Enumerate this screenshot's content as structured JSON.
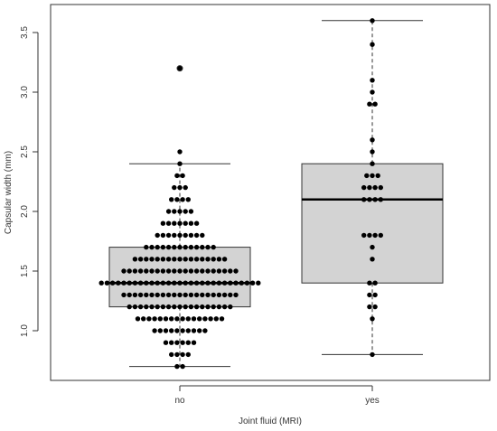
{
  "chart_data": {
    "type": "boxplot",
    "xlabel": "Joint fluid (MRI)",
    "ylabel": "Capsular width (mm)",
    "categories": [
      "no",
      "yes"
    ],
    "ylim": [
      0.6,
      3.65
    ],
    "yticks": [
      1.0,
      1.5,
      2.0,
      2.5,
      3.0,
      3.5
    ],
    "ytick_labels": [
      "1.0",
      "1.5",
      "2.0",
      "2.5",
      "3.0",
      "3.5"
    ],
    "grid": false,
    "legend": "none",
    "box_fill": "#d3d3d3",
    "point_color": "#000000",
    "boxes": [
      {
        "name": "no",
        "whisker_low": 0.7,
        "q1": 1.2,
        "median": 1.4,
        "q3": 1.7,
        "whisker_high": 2.4,
        "outliers": [
          3.2
        ]
      },
      {
        "name": "yes",
        "whisker_low": 0.8,
        "q1": 1.4,
        "median": 2.1,
        "q3": 2.4,
        "whisker_high": 3.6,
        "outliers": []
      }
    ],
    "points": [
      {
        "category": "no",
        "bins": [
          {
            "y": 0.7,
            "count": 2
          },
          {
            "y": 0.8,
            "count": 4
          },
          {
            "y": 0.9,
            "count": 6
          },
          {
            "y": 1.0,
            "count": 10
          },
          {
            "y": 1.1,
            "count": 16
          },
          {
            "y": 1.2,
            "count": 19
          },
          {
            "y": 1.3,
            "count": 21
          },
          {
            "y": 1.4,
            "count": 29
          },
          {
            "y": 1.5,
            "count": 21
          },
          {
            "y": 1.6,
            "count": 17
          },
          {
            "y": 1.7,
            "count": 13
          },
          {
            "y": 1.8,
            "count": 9
          },
          {
            "y": 1.9,
            "count": 7
          },
          {
            "y": 2.0,
            "count": 5
          },
          {
            "y": 2.1,
            "count": 4
          },
          {
            "y": 2.2,
            "count": 3
          },
          {
            "y": 2.3,
            "count": 2
          },
          {
            "y": 2.4,
            "count": 1
          },
          {
            "y": 2.5,
            "count": 1
          },
          {
            "y": 3.2,
            "count": 1
          }
        ]
      },
      {
        "category": "yes",
        "bins": [
          {
            "y": 0.8,
            "count": 1
          },
          {
            "y": 1.1,
            "count": 1
          },
          {
            "y": 1.2,
            "count": 2
          },
          {
            "y": 1.3,
            "count": 2
          },
          {
            "y": 1.4,
            "count": 2
          },
          {
            "y": 1.6,
            "count": 1
          },
          {
            "y": 1.7,
            "count": 1
          },
          {
            "y": 1.8,
            "count": 4
          },
          {
            "y": 2.1,
            "count": 4
          },
          {
            "y": 2.2,
            "count": 4
          },
          {
            "y": 2.3,
            "count": 3
          },
          {
            "y": 2.4,
            "count": 1
          },
          {
            "y": 2.5,
            "count": 1
          },
          {
            "y": 2.6,
            "count": 1
          },
          {
            "y": 2.9,
            "count": 2
          },
          {
            "y": 3.0,
            "count": 1
          },
          {
            "y": 3.1,
            "count": 1
          },
          {
            "y": 3.4,
            "count": 1
          },
          {
            "y": 3.6,
            "count": 1
          }
        ]
      }
    ]
  }
}
